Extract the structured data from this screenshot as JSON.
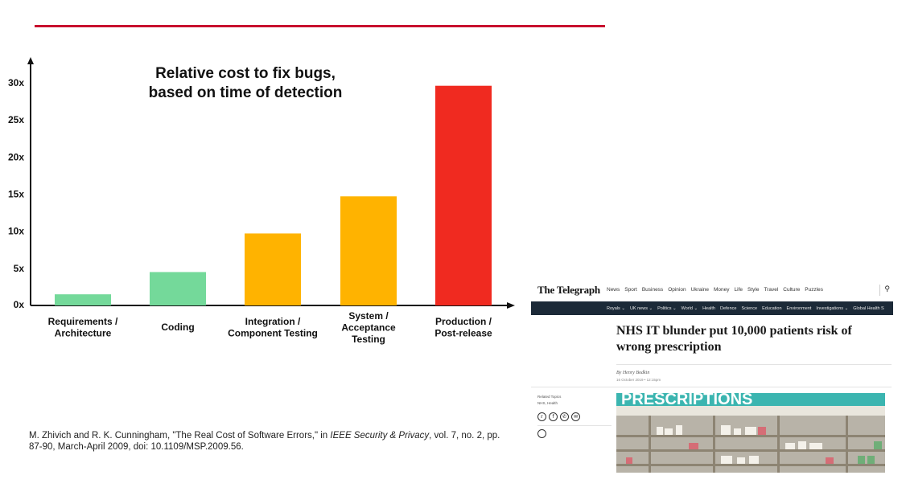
{
  "chart_data": {
    "type": "bar",
    "title": "Relative cost to fix bugs,\nbased on time of detection",
    "categories": [
      "Requirements /\nArchitecture",
      "Coding",
      "Integration /\nComponent Testing",
      "System /\nAcceptance\nTesting",
      "Production /\nPost-release"
    ],
    "values": [
      1.5,
      4.5,
      9.7,
      14.7,
      29.6
    ],
    "colors": [
      "#74d99a",
      "#74d99a",
      "#ffb300",
      "#ffb300",
      "#f02a20"
    ],
    "yticks": [
      "0x",
      "5x",
      "10x",
      "15x",
      "20x",
      "25x",
      "30x"
    ],
    "ylim": [
      0,
      30
    ],
    "grid": false
  },
  "citation": {
    "part1": "M. Zhivich and R. K. Cunningham, \"The Real Cost of Software Errors,\" in ",
    "journal": "IEEE Security & Privacy",
    "part2": ", vol. 7, no. 2, pp. 87-90, March-April 2009, doi: 10.1109/MSP.2009.56."
  },
  "article": {
    "logo": "The Telegraph",
    "nav": [
      "News",
      "Sport",
      "Business",
      "Opinion",
      "Ukraine",
      "Money",
      "Life",
      "Style",
      "Travel",
      "Culture",
      "Puzzles"
    ],
    "subnav": [
      "Royals ⌄",
      "UK news ⌄",
      "Politics ⌄",
      "World ⌄",
      "Health",
      "Defence",
      "Science",
      "Education",
      "Environment",
      "Investigations ⌄",
      "Global Health S"
    ],
    "headline": "NHS IT blunder put 10,000 patients risk of wrong prescription",
    "byline": "By Henry Bodkin",
    "date": "16 October 2019 • 12:15pm",
    "related_label": "Related Topics",
    "related_topic": "NHS, Health",
    "photo_sign": "PRESCRIPTIONS"
  }
}
